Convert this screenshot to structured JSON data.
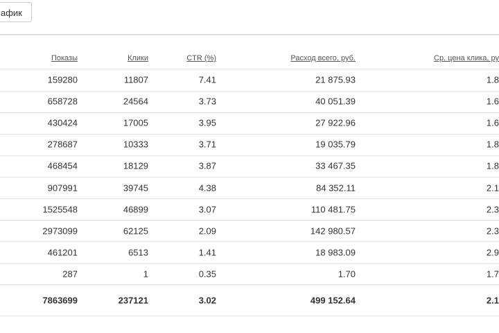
{
  "button": {
    "label": "афик"
  },
  "table": {
    "header": [
      "Показы",
      "Клики",
      "CTR (%)",
      "Расход всего, руб.",
      "Ср. цена клика, ру"
    ],
    "rows": [
      [
        "159280",
        "11807",
        "7.41",
        "21 875.93",
        "1.8"
      ],
      [
        "658728",
        "24564",
        "3.73",
        "40 051.39",
        "1.6"
      ],
      [
        "430424",
        "17005",
        "3.95",
        "27 922.96",
        "1.6"
      ],
      [
        "278687",
        "10333",
        "3.71",
        "19 035.79",
        "1.8"
      ],
      [
        "468454",
        "18129",
        "3.87",
        "33 467.35",
        "1.8"
      ],
      [
        "907991",
        "39745",
        "4.38",
        "84 352.11",
        "2.1"
      ],
      [
        "1525548",
        "46899",
        "3.07",
        "110 481.75",
        "2.3"
      ],
      [
        "2973099",
        "62125",
        "2.09",
        "142 980.57",
        "2.3"
      ],
      [
        "461201",
        "6513",
        "1.41",
        "18 983.09",
        "2.9"
      ],
      [
        "287",
        "1",
        "0.35",
        "1.70",
        "1.7"
      ]
    ],
    "total": [
      "7863699",
      "237121",
      "3.02",
      "499 152.64",
      "2.1"
    ]
  }
}
